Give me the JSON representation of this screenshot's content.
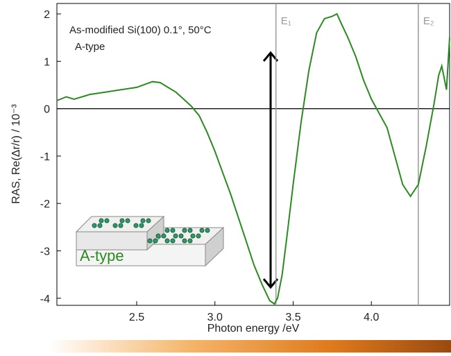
{
  "chart_data": {
    "type": "line",
    "annotations": [
      "As-modified Si(100) 0.1°, 50°C",
      "A-type"
    ],
    "inset_label": "A-type",
    "xlabel": "Photon energy /eV",
    "ylabel": "RAS, Re(Δr/r) / 10⁻³",
    "x": [
      1.99,
      2.05,
      2.1,
      2.2,
      2.3,
      2.4,
      2.5,
      2.6,
      2.65,
      2.7,
      2.75,
      2.8,
      2.85,
      2.9,
      2.95,
      3.0,
      3.05,
      3.1,
      3.15,
      3.2,
      3.25,
      3.3,
      3.35,
      3.38,
      3.4,
      3.43,
      3.46,
      3.5,
      3.55,
      3.6,
      3.65,
      3.7,
      3.75,
      3.78,
      3.8,
      3.85,
      3.9,
      3.95,
      4.0,
      4.05,
      4.1,
      4.15,
      4.2,
      4.25,
      4.3,
      4.35,
      4.4,
      4.43,
      4.45,
      4.48,
      4.5
    ],
    "series": [
      {
        "color": "#2a8a1f",
        "values": [
          0.17,
          0.25,
          0.2,
          0.3,
          0.35,
          0.4,
          0.45,
          0.57,
          0.55,
          0.45,
          0.35,
          0.2,
          0.05,
          -0.15,
          -0.5,
          -0.9,
          -1.35,
          -1.8,
          -2.3,
          -2.8,
          -3.3,
          -3.7,
          -4.05,
          -4.12,
          -4.0,
          -3.5,
          -2.7,
          -1.6,
          -0.3,
          0.8,
          1.6,
          1.9,
          1.95,
          2.0,
          1.85,
          1.5,
          1.1,
          0.6,
          0.2,
          -0.1,
          -0.4,
          -1.0,
          -1.6,
          -1.85,
          -1.6,
          -0.8,
          0.1,
          0.7,
          0.9,
          0.4,
          1.5
        ]
      }
    ],
    "vlines": [
      {
        "value": 3.39,
        "label": "E₁"
      },
      {
        "value": 4.3,
        "label": "E₂"
      }
    ],
    "xlim": [
      1.99,
      4.5
    ],
    "ylim": [
      -4.15,
      2.22
    ],
    "xticks": [
      2.5,
      {
        "value": 3,
        "label": "3.0"
      },
      3.5,
      {
        "value": 4,
        "label": "4.0"
      }
    ],
    "yticks": [
      -4,
      -3,
      -2,
      -1,
      0,
      1,
      2
    ]
  }
}
